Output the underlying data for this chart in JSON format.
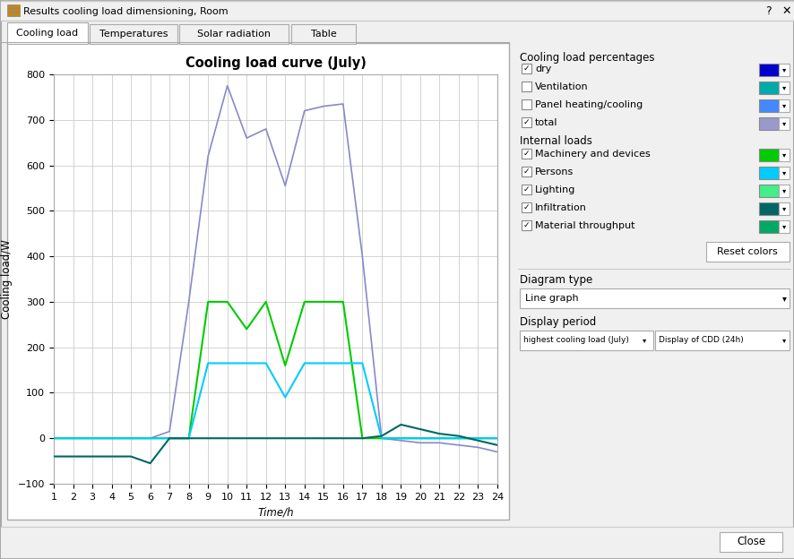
{
  "title": "Cooling load curve (July)",
  "xlabel": "Time/h",
  "ylabel": "Cooling load/W",
  "xlim": [
    1,
    24
  ],
  "ylim": [
    -100,
    800
  ],
  "yticks": [
    -100,
    0,
    100,
    200,
    300,
    400,
    500,
    600,
    700,
    800
  ],
  "xticks": [
    1,
    2,
    3,
    4,
    5,
    6,
    7,
    8,
    9,
    10,
    11,
    12,
    13,
    14,
    15,
    16,
    17,
    18,
    19,
    20,
    21,
    22,
    23,
    24
  ],
  "series": {
    "total": {
      "color": "#8888cc",
      "x": [
        1,
        2,
        3,
        4,
        5,
        6,
        7,
        8,
        9,
        10,
        11,
        12,
        13,
        14,
        15,
        16,
        17,
        18,
        19,
        20,
        21,
        22,
        23,
        24
      ],
      "y": [
        0,
        0,
        0,
        0,
        0,
        0,
        15,
        300,
        620,
        775,
        660,
        680,
        555,
        720,
        730,
        735,
        400,
        0,
        -5,
        -10,
        -10,
        -15,
        -20,
        -30
      ]
    },
    "machinery": {
      "color": "#00cc00",
      "x": [
        1,
        2,
        3,
        4,
        5,
        6,
        7,
        8,
        9,
        10,
        11,
        12,
        13,
        14,
        15,
        16,
        17,
        18,
        19,
        20,
        21,
        22,
        23,
        24
      ],
      "y": [
        0,
        0,
        0,
        0,
        0,
        0,
        0,
        0,
        300,
        300,
        240,
        300,
        160,
        300,
        300,
        300,
        0,
        0,
        0,
        0,
        0,
        0,
        0,
        0
      ]
    },
    "persons": {
      "color": "#00ccff",
      "x": [
        1,
        2,
        3,
        4,
        5,
        6,
        7,
        8,
        9,
        10,
        11,
        12,
        13,
        14,
        15,
        16,
        17,
        18,
        19,
        20,
        21,
        22,
        23,
        24
      ],
      "y": [
        0,
        0,
        0,
        0,
        0,
        0,
        0,
        0,
        165,
        165,
        165,
        165,
        90,
        165,
        165,
        165,
        165,
        0,
        0,
        0,
        0,
        0,
        0,
        0
      ]
    },
    "infiltration": {
      "color": "#006666",
      "x": [
        1,
        2,
        3,
        4,
        5,
        6,
        7,
        8,
        9,
        10,
        11,
        12,
        13,
        14,
        15,
        16,
        17,
        18,
        19,
        20,
        21,
        22,
        23,
        24
      ],
      "y": [
        -40,
        -40,
        -40,
        -40,
        -40,
        -55,
        0,
        0,
        0,
        0,
        0,
        0,
        0,
        0,
        0,
        0,
        0,
        5,
        30,
        20,
        10,
        5,
        -5,
        -15
      ]
    }
  },
  "window_title": "Results cooling load dimensioning, Room",
  "tab_labels": [
    "Cooling load",
    "Temperatures",
    "Solar radiation",
    "Table"
  ],
  "right_panel": {
    "title": "Cooling load percentages",
    "items": [
      {
        "label": "dry",
        "checked": true,
        "color": "#0000cc"
      },
      {
        "label": "Ventilation",
        "checked": false,
        "color": "#00aaaa"
      },
      {
        "label": "Panel heating/cooling",
        "checked": false,
        "color": "#4488ff"
      },
      {
        "label": "total",
        "checked": true,
        "color": "#9999cc"
      }
    ],
    "internal_title": "Internal loads",
    "internal_items": [
      {
        "label": "Machinery and devices",
        "checked": true,
        "color": "#00cc00"
      },
      {
        "label": "Persons",
        "checked": true,
        "color": "#00ccff"
      },
      {
        "label": "Lighting",
        "checked": true,
        "color": "#44ee88"
      },
      {
        "label": "Infiltration",
        "checked": true,
        "color": "#006666"
      },
      {
        "label": "Material throughput",
        "checked": true,
        "color": "#00aa66"
      }
    ]
  },
  "bg_color": "#f0f0f0",
  "plot_bg_color": "#ffffff",
  "grid_color": "#cccccc",
  "diagram_type": "Line graph",
  "display_period": "highest cooling load (July)",
  "display_cdd": "Display of CDD (24h)"
}
